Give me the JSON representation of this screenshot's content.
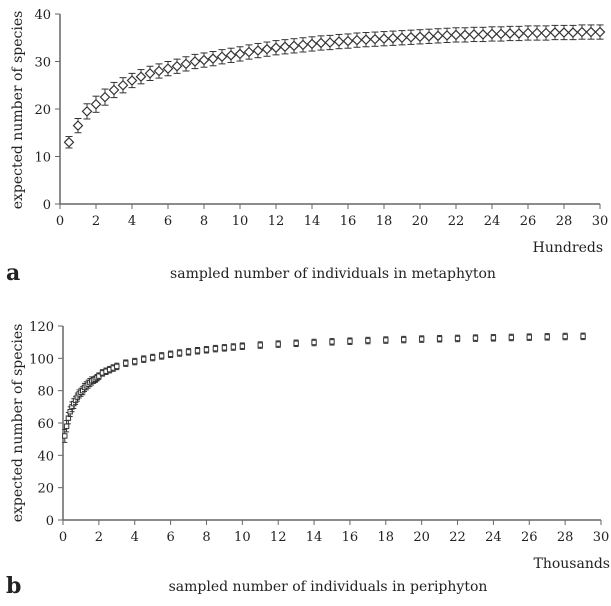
{
  "chart_data": [
    {
      "type": "scatter",
      "panel": "a",
      "xlabel": "sampled number of individuals in metaphyton",
      "x_unit": "Hundreds",
      "ylabel": "expected number of species",
      "xlim": [
        0,
        30
      ],
      "ylim": [
        0,
        40
      ],
      "xticks": [
        "0",
        "2",
        "4",
        "6",
        "8",
        "10",
        "12",
        "14",
        "16",
        "18",
        "20",
        "22",
        "24",
        "26",
        "28",
        "30"
      ],
      "yticks": [
        "0",
        "10",
        "20",
        "30",
        "40"
      ],
      "marker": "diamond",
      "x": [
        0.5,
        1,
        1.5,
        2,
        2.5,
        3,
        3.5,
        4,
        4.5,
        5,
        5.5,
        6,
        6.5,
        7,
        7.5,
        8,
        8.5,
        9,
        9.5,
        10,
        10.5,
        11,
        11.5,
        12,
        12.5,
        13,
        13.5,
        14,
        14.5,
        15,
        15.5,
        16,
        16.5,
        17,
        17.5,
        18,
        18.5,
        19,
        19.5,
        20,
        20.5,
        21,
        21.5,
        22,
        22.5,
        23,
        23.5,
        24,
        24.5,
        25,
        25.5,
        26,
        26.5,
        27,
        27.5,
        28,
        28.5,
        29,
        29.5,
        30
      ],
      "y": [
        13,
        16.5,
        19.5,
        21,
        22.5,
        24,
        25,
        26,
        26.8,
        27.5,
        28,
        28.5,
        29,
        29.5,
        30,
        30.3,
        30.6,
        31,
        31.3,
        31.6,
        32,
        32.3,
        32.6,
        32.9,
        33.1,
        33.3,
        33.5,
        33.7,
        33.9,
        34,
        34.2,
        34.3,
        34.5,
        34.6,
        34.7,
        34.8,
        34.9,
        35,
        35.1,
        35.2,
        35.3,
        35.4,
        35.5,
        35.6,
        35.6,
        35.7,
        35.7,
        35.8,
        35.8,
        35.9,
        35.9,
        36,
        36,
        36,
        36.1,
        36.1,
        36.1,
        36.2,
        36.2,
        36.2
      ],
      "err": [
        1.2,
        1.5,
        1.6,
        1.7,
        1.7,
        1.6,
        1.6,
        1.5,
        1.5,
        1.5,
        1.5,
        1.5,
        1.5,
        1.5,
        1.5,
        1.5,
        1.5,
        1.5,
        1.5,
        1.5,
        1.5,
        1.5,
        1.5,
        1.5,
        1.5,
        1.5,
        1.5,
        1.5,
        1.5,
        1.5,
        1.5,
        1.5,
        1.5,
        1.5,
        1.5,
        1.5,
        1.5,
        1.5,
        1.5,
        1.5,
        1.5,
        1.5,
        1.5,
        1.5,
        1.5,
        1.5,
        1.5,
        1.5,
        1.5,
        1.5,
        1.5,
        1.5,
        1.5,
        1.5,
        1.5,
        1.5,
        1.5,
        1.5,
        1.5,
        1.5
      ]
    },
    {
      "type": "scatter",
      "panel": "b",
      "xlabel": "sampled number of individuals in periphyton",
      "x_unit": "Thousands",
      "ylabel": "expected number of species",
      "xlim": [
        0,
        30
      ],
      "ylim": [
        0,
        120
      ],
      "xticks": [
        "0",
        "2",
        "4",
        "6",
        "8",
        "10",
        "12",
        "14",
        "16",
        "18",
        "20",
        "22",
        "24",
        "26",
        "28",
        "30"
      ],
      "yticks": [
        "0",
        "20",
        "40",
        "60",
        "80",
        "100",
        "120"
      ],
      "marker": "square",
      "x": [
        0.1,
        0.2,
        0.3,
        0.4,
        0.5,
        0.6,
        0.7,
        0.8,
        0.9,
        1.0,
        1.1,
        1.2,
        1.3,
        1.4,
        1.5,
        1.6,
        1.7,
        1.8,
        1.9,
        2.0,
        2.2,
        2.4,
        2.6,
        2.8,
        3.0,
        3.5,
        4.0,
        4.5,
        5.0,
        5.5,
        6.0,
        6.5,
        7.0,
        7.5,
        8.0,
        8.5,
        9.0,
        9.5,
        10.0,
        11,
        12,
        13,
        14,
        15,
        16,
        17,
        18,
        19,
        20,
        21,
        22,
        23,
        24,
        25,
        26,
        27,
        28,
        29
      ],
      "y": [
        52,
        58,
        63,
        67,
        70,
        72,
        74,
        76,
        78,
        79,
        80,
        82,
        83,
        84,
        85,
        86,
        86.5,
        87,
        88,
        89,
        91,
        92,
        93,
        94,
        95,
        97,
        98,
        99.5,
        100.5,
        101.5,
        102.5,
        103.3,
        104,
        104.7,
        105.3,
        106,
        106.5,
        107,
        107.5,
        108.2,
        108.8,
        109.3,
        109.8,
        110.2,
        110.6,
        111,
        111.3,
        111.6,
        111.9,
        112.1,
        112.3,
        112.5,
        112.7,
        112.9,
        113.1,
        113.3,
        113.5,
        113.6
      ],
      "err": [
        4,
        3.5,
        3.5,
        3,
        3,
        3,
        2.5,
        2.5,
        2.5,
        2.5,
        2.5,
        2.5,
        2.5,
        2.5,
        2.5,
        2.5,
        2,
        2,
        2,
        2,
        2,
        2,
        2,
        2,
        2,
        2,
        2,
        2,
        2,
        2,
        2,
        2,
        2,
        2,
        2,
        2,
        2,
        2,
        2,
        2,
        2,
        2,
        2,
        2,
        2,
        2,
        2,
        2,
        2,
        2,
        2,
        2,
        2,
        2,
        2,
        2,
        2,
        2
      ]
    }
  ]
}
